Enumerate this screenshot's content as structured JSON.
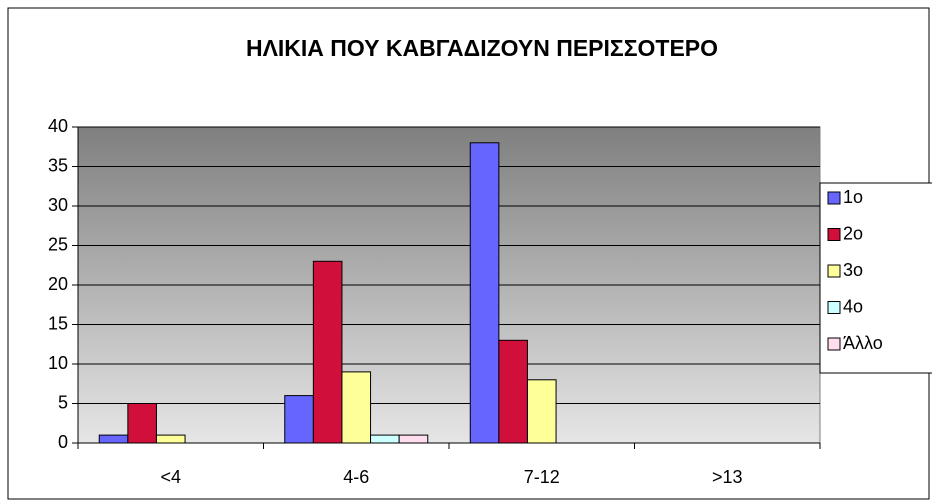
{
  "chart_data": {
    "type": "bar",
    "title": "ΗΛΙΚΙΑ ΠΟΥ ΚΑΒΓΑΔΙΖΟΥΝ ΠΕΡΙΣΣΟΤΕΡΟ",
    "categories": [
      "<4",
      "4-6",
      "7-12",
      ">13"
    ],
    "series": [
      {
        "name": "1ο",
        "color": "#6666ff",
        "values": [
          1,
          6,
          38,
          0
        ]
      },
      {
        "name": "2ο",
        "color": "#d0103a",
        "values": [
          5,
          23,
          13,
          0
        ]
      },
      {
        "name": "3ο",
        "color": "#ffff99",
        "values": [
          1,
          9,
          8,
          0
        ]
      },
      {
        "name": "4ο",
        "color": "#ccffff",
        "values": [
          0,
          1,
          0,
          0
        ]
      },
      {
        "name": "Άλλο",
        "color": "#ffddee",
        "values": [
          0,
          1,
          0,
          0
        ]
      }
    ],
    "ylim": [
      0,
      40
    ],
    "yticks": [
      0,
      5,
      10,
      15,
      20,
      25,
      30,
      35,
      40
    ],
    "grid": true,
    "legend": "right"
  }
}
